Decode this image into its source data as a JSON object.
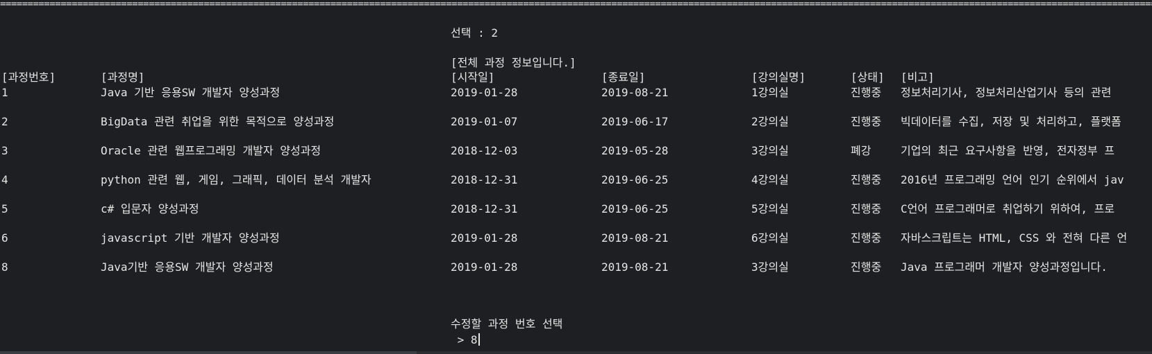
{
  "separator": "========================================================================================================================================================================================================================================================================",
  "prompt": {
    "select_line": "선택 : 2",
    "title": "[전체 과정 정보입니다.]"
  },
  "table": {
    "headers": [
      "[과정번호]",
      "[과정명]",
      "[시작일]",
      "[종료일]",
      "[강의실명]",
      "[상태]",
      "[비고]"
    ],
    "rows": [
      [
        "1",
        "Java 기반 응용SW 개발자 양성과정",
        "2019-01-28",
        "2019-08-21",
        "1강의실",
        "진행중",
        "정보처리기사, 정보처리산업기사 등의 관련"
      ],
      [
        "2",
        "BigData 관련 취업을 위한 목적으로 양성과정",
        "2019-01-07",
        "2019-06-17",
        "2강의실",
        "진행중",
        "빅데이터를 수집, 저장 및 처리하고, 플랫폼"
      ],
      [
        "3",
        "Oracle 관련 웹프로그래밍 개발자 양성과정",
        "2018-12-03",
        "2019-05-28",
        "3강의실",
        "폐강",
        "기업의 최근 요구사항을 반영, 전자정부 프"
      ],
      [
        "4",
        "python 관련 웹, 게임, 그래픽, 데이터 분석 개발자",
        "2018-12-31",
        "2019-06-25",
        "4강의실",
        "진행중",
        "2016년 프로그래밍 언어 인기 순위에서 jav"
      ],
      [
        "5",
        "c# 입문자 양성과정",
        "2018-12-31",
        "2019-06-25",
        "5강의실",
        "진행중",
        "C언어 프로그래머로 취업하기 위하여, 프로"
      ],
      [
        "6",
        "javascript 기반 개발자 양성과정",
        "2019-01-28",
        "2019-08-21",
        "6강의실",
        "진행중",
        "자바스크립트는 HTML, CSS 와 전혀 다른 언"
      ],
      [
        "8",
        "Java기반 응용SW 개발자 양성과정",
        "2019-01-28",
        "2019-08-21",
        "3강의실",
        "진행중",
        "Java 프로그래머 개발자 양성과정입니다."
      ]
    ]
  },
  "input": {
    "label": "수정할 과정 번호 선택",
    "prompt_symbol": " > ",
    "value": "8"
  }
}
